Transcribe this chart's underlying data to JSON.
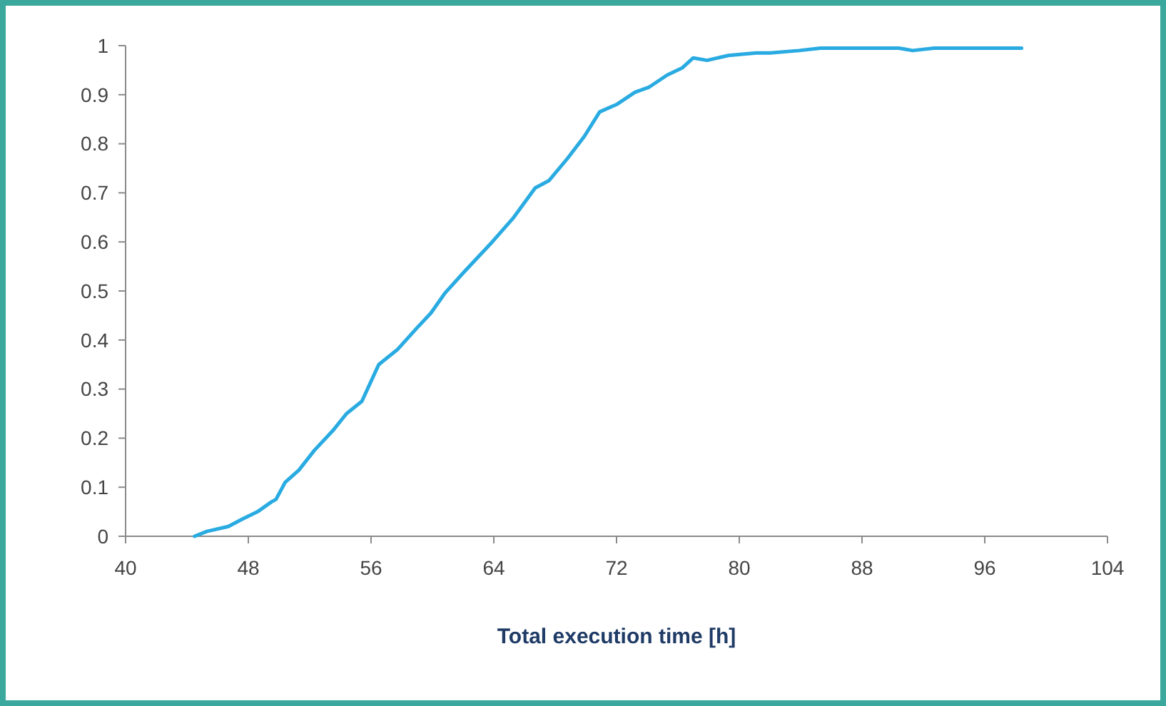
{
  "chart_data": {
    "type": "line",
    "xlabel": "Total execution time [h]",
    "xlim": [
      40,
      104
    ],
    "xticks": [
      40,
      48,
      56,
      64,
      72,
      80,
      88,
      96,
      104
    ],
    "ylim": [
      0,
      1
    ],
    "yticks": [
      0,
      0.1,
      0.2,
      0.3,
      0.4,
      0.5,
      0.6,
      0.7,
      0.8,
      0.9,
      1
    ],
    "marker": "none",
    "line_style": "solid",
    "series": [
      {
        "color": "#29abe2",
        "x": [
          44.5,
          45.3,
          46.7,
          47.6,
          48.6,
          49.5,
          49.8,
          50.4,
          51.3,
          52.3,
          53.5,
          54.4,
          55.4,
          56.5,
          57.7,
          59.0,
          59.9,
          60.8,
          62.1,
          63.9,
          65.3,
          66.7,
          67.6,
          68.8,
          69.9,
          70.9,
          72.0,
          73.2,
          74.1,
          75.3,
          76.3,
          77.0,
          77.9,
          79.3,
          81.1,
          82.0,
          83.9,
          85.3,
          90.4,
          91.3,
          92.7,
          96.9,
          98.4
        ],
        "values": [
          0,
          0.01,
          0.02,
          0.035,
          0.05,
          0.07,
          0.075,
          0.11,
          0.135,
          0.175,
          0.215,
          0.25,
          0.275,
          0.35,
          0.38,
          0.425,
          0.455,
          0.495,
          0.54,
          0.6,
          0.65,
          0.71,
          0.725,
          0.77,
          0.815,
          0.865,
          0.88,
          0.905,
          0.915,
          0.94,
          0.955,
          0.975,
          0.97,
          0.98,
          0.985,
          0.985,
          0.99,
          0.995,
          0.995,
          0.99,
          0.995,
          0.995,
          0.995
        ]
      }
    ]
  }
}
